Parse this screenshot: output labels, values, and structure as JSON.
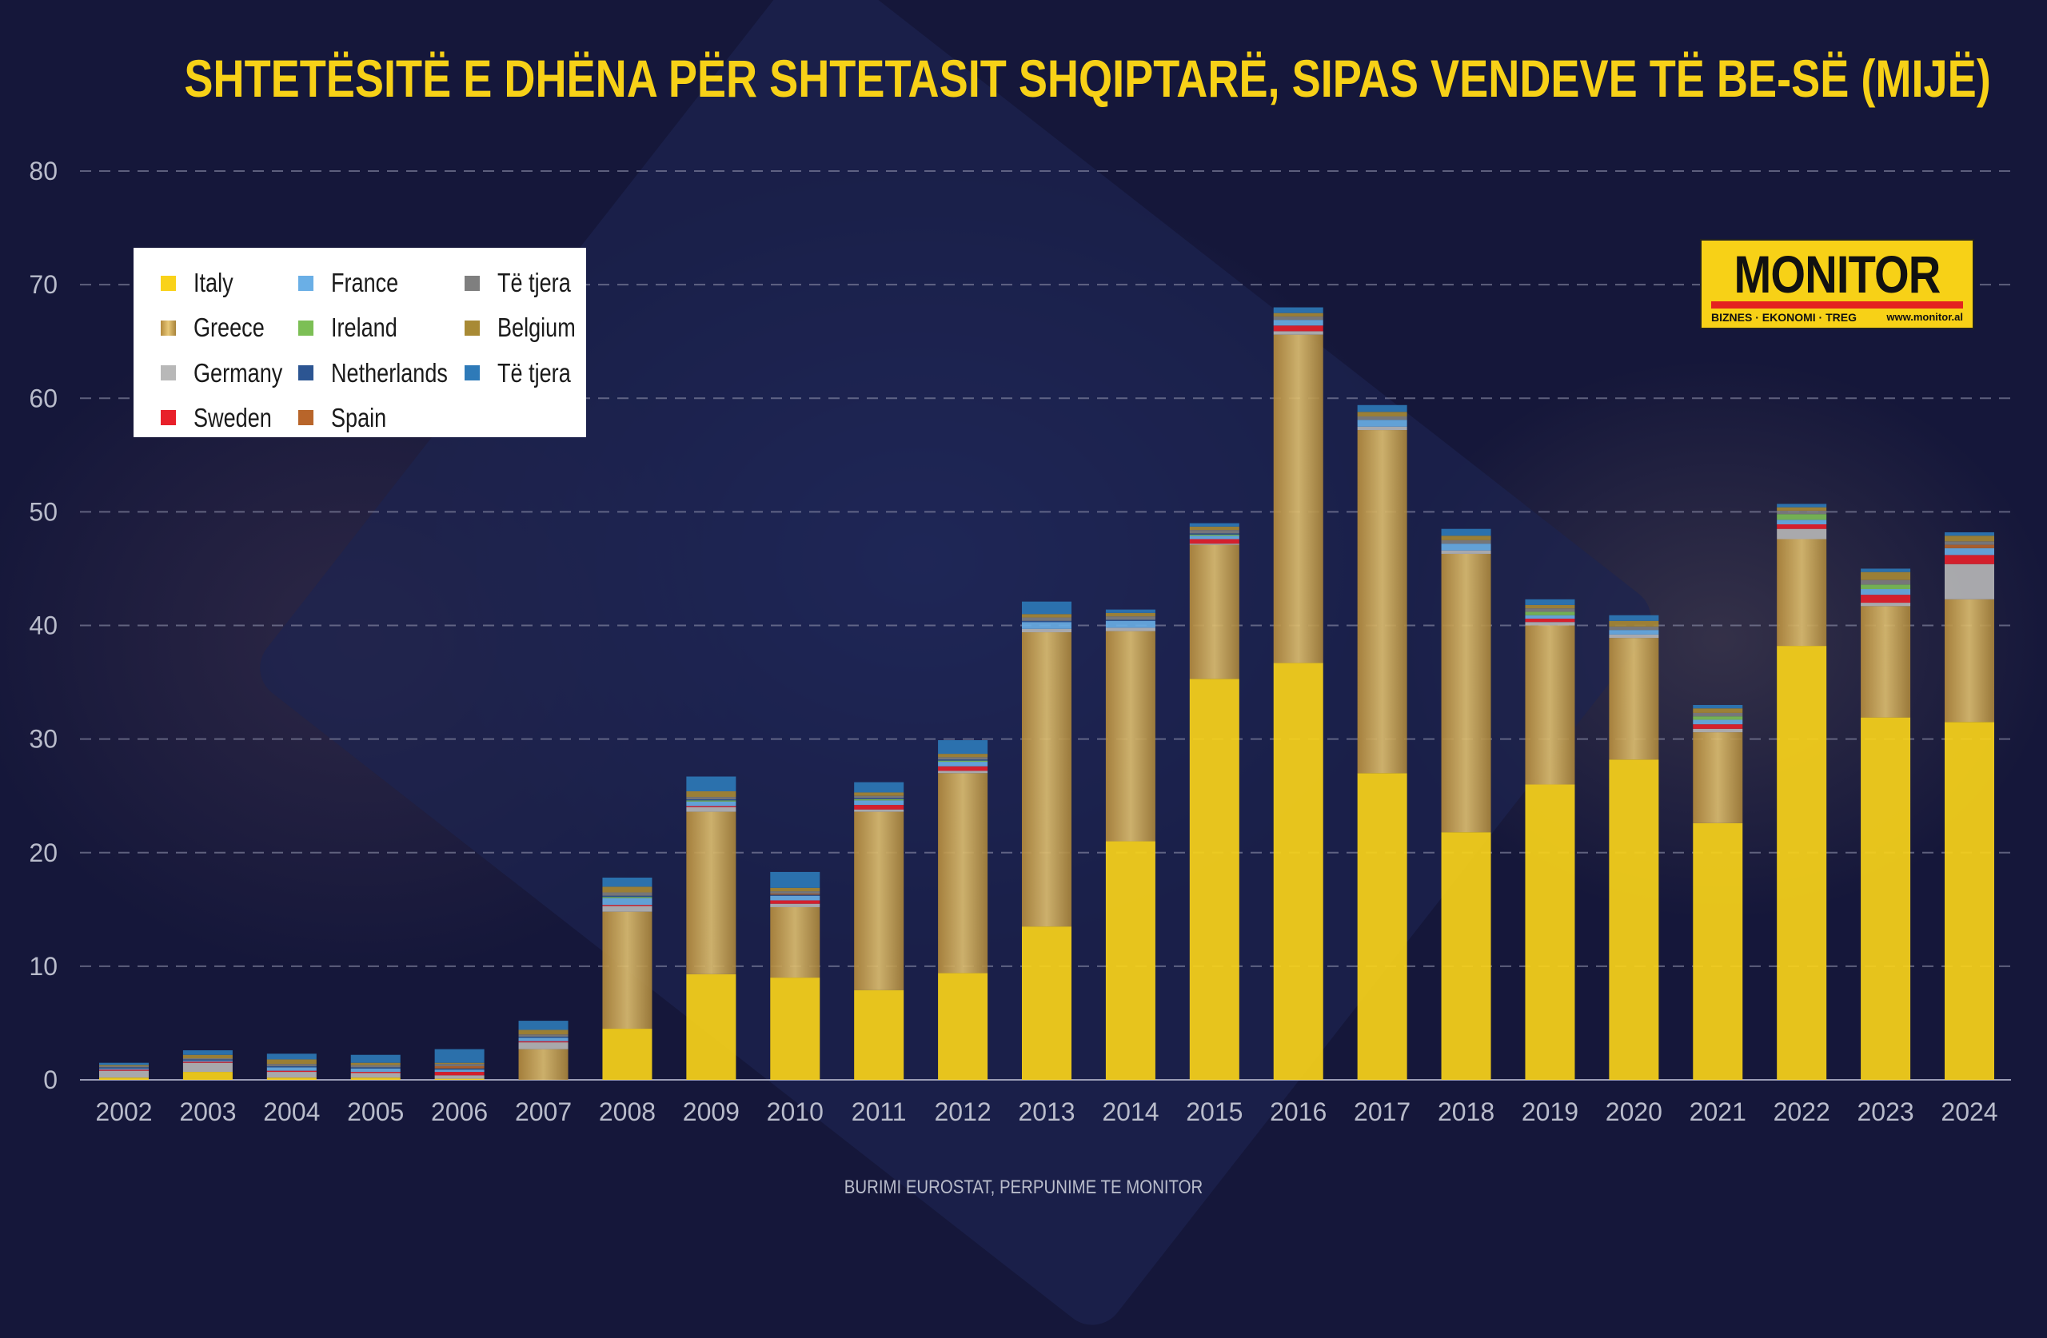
{
  "title": "SHTETËSITË E DHËNA PËR SHTETASIT SHQIPTARË, SIPAS VENDEVE TË BE-SË (MIJË)",
  "source": "BURIMI EUROSTAT, PERPUNIME TE MONITOR",
  "logo": {
    "name": "MONITOR",
    "tagline": "BIZNES · EKONOMI · TREG",
    "url": "www.monitor.al"
  },
  "chart_data": {
    "type": "bar",
    "stacked": true,
    "title": "SHTETËSITË E DHËNA PËR SHTETASIT SHQIPTARË, SIPAS VENDEVE TË BE-SË (MIJË)",
    "xlabel": "",
    "ylabel": "",
    "ylim": [
      0,
      80
    ],
    "yticks": [
      0,
      10,
      20,
      30,
      40,
      50,
      60,
      70,
      80
    ],
    "grid": true,
    "legend_position": "top-left",
    "categories": [
      "2002",
      "2003",
      "2004",
      "2005",
      "2006",
      "2007",
      "2008",
      "2009",
      "2010",
      "2011",
      "2012",
      "2013",
      "2014",
      "2015",
      "2016",
      "2017",
      "2018",
      "2019",
      "2020",
      "2021",
      "2022",
      "2023",
      "2024"
    ],
    "series": [
      {
        "name": "Italy",
        "color": "#f9d21a",
        "values": [
          0.2,
          0.7,
          0.2,
          0.2,
          0.1,
          0,
          4.5,
          9.3,
          9.0,
          7.9,
          9.4,
          13.5,
          21.0,
          35.3,
          36.7,
          27.0,
          21.8,
          26.0,
          28.2,
          22.6,
          38.2,
          31.9,
          31.5
        ]
      },
      {
        "name": "Greece",
        "color": "#c9a55a",
        "values": [
          0,
          0,
          0,
          0,
          0,
          2.7,
          10.3,
          14.3,
          6.2,
          15.7,
          17.6,
          25.9,
          18.5,
          11.8,
          28.9,
          30.2,
          24.5,
          14.0,
          10.7,
          8.0,
          9.4,
          9.8,
          10.8
        ]
      },
      {
        "name": "Germany",
        "color": "#b8b8b8",
        "values": [
          0.6,
          0.8,
          0.5,
          0.4,
          0.3,
          0.6,
          0.5,
          0.4,
          0.3,
          0.2,
          0.2,
          0.3,
          0.3,
          0.1,
          0.3,
          0.3,
          0.3,
          0.3,
          0.3,
          0.3,
          0.9,
          0.3,
          3.1
        ]
      },
      {
        "name": "Sweden",
        "color": "#e8202a",
        "values": [
          0.1,
          0.1,
          0.1,
          0.1,
          0.3,
          0.1,
          0.1,
          0.1,
          0.3,
          0.4,
          0.4,
          0,
          0,
          0.4,
          0.5,
          0,
          0,
          0.3,
          0,
          0.4,
          0.4,
          0.7,
          0.8
        ]
      },
      {
        "name": "France",
        "color": "#6aafe6",
        "values": [
          0.1,
          0.1,
          0.3,
          0.3,
          0.2,
          0.3,
          0.6,
          0.4,
          0.4,
          0.4,
          0.4,
          0.6,
          0.6,
          0.3,
          0.5,
          0.6,
          0.6,
          0.3,
          0.4,
          0.4,
          0.4,
          0.5,
          0.6
        ]
      },
      {
        "name": "Ireland",
        "color": "#7cbf55",
        "values": [
          0,
          0,
          0,
          0,
          0,
          0,
          0.1,
          0.1,
          0,
          0.1,
          0.1,
          0,
          0,
          0.1,
          0,
          0,
          0,
          0.3,
          0,
          0.3,
          0.5,
          0.4,
          0
        ]
      },
      {
        "name": "Netherlands",
        "color": "#2c5592",
        "values": [
          0.1,
          0.1,
          0.1,
          0.1,
          0.1,
          0.1,
          0.1,
          0.1,
          0.1,
          0.1,
          0.1,
          0.1,
          0.1,
          0.1,
          0,
          0,
          0,
          0,
          0,
          0,
          0,
          0,
          0
        ]
      },
      {
        "name": "Spain",
        "color": "#b8652a",
        "values": [
          0,
          0,
          0,
          0,
          0.2,
          0,
          0,
          0,
          0.1,
          0,
          0,
          0,
          0,
          0,
          0,
          0,
          0,
          0,
          0,
          0,
          0,
          0,
          0.3
        ]
      },
      {
        "name": "Të tjera",
        "color": "#7f7f7f",
        "values": [
          0.1,
          0.1,
          0.2,
          0.2,
          0.2,
          0.2,
          0.3,
          0.2,
          0.2,
          0.2,
          0.2,
          0.3,
          0.3,
          0.3,
          0.3,
          0.3,
          0.3,
          0.3,
          0.3,
          0.3,
          0.3,
          0.4,
          0.3
        ]
      },
      {
        "name": "Belgium",
        "color": "#a88a35",
        "values": [
          0.1,
          0.3,
          0.4,
          0.2,
          0.1,
          0.4,
          0.5,
          0.5,
          0.3,
          0.3,
          0.3,
          0.3,
          0.3,
          0.3,
          0.3,
          0.4,
          0.4,
          0.3,
          0.5,
          0.4,
          0.3,
          0.7,
          0.5
        ]
      },
      {
        "name": "Të tjera",
        "color": "#2e7ab8",
        "values": [
          0.2,
          0.4,
          0.5,
          0.7,
          1.2,
          0.8,
          0.8,
          1.3,
          1.4,
          0.9,
          1.2,
          1.1,
          0.3,
          0.3,
          0.5,
          0.6,
          0.6,
          0.5,
          0.5,
          0.3,
          0.3,
          0.3,
          0.3
        ]
      }
    ]
  }
}
